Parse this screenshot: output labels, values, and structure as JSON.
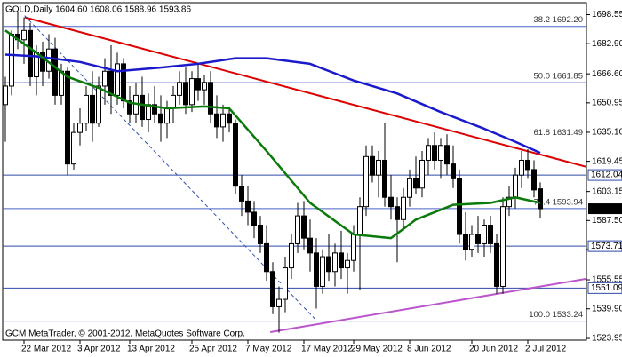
{
  "chart_data": {
    "type": "candlestick",
    "title": "GOLD,Daily  1604.60 1608.06 1588.96 1593.86",
    "footer": "GCM MetaTrader, © 2001-2012, MetaQuotes Software Corp.",
    "categories": [
      null,
      null,
      null,
      "22 Mar 2012",
      null,
      null,
      null,
      null,
      null,
      null,
      null,
      null,
      "3 Apr 2012",
      null,
      null,
      null,
      null,
      null,
      null,
      null,
      "13 Apr 2012",
      null,
      null,
      null,
      null,
      null,
      null,
      null,
      null,
      null,
      "25 Apr 2012",
      null,
      null,
      null,
      null,
      null,
      null,
      null,
      null,
      "7 May 2012",
      null,
      null,
      null,
      null,
      null,
      null,
      null,
      null,
      "17 May 2012",
      null,
      null,
      null,
      null,
      null,
      null,
      null,
      "29 May 2012",
      null,
      null,
      null,
      null,
      null,
      null,
      null,
      null,
      "8 Jun 2012",
      null,
      null,
      null,
      null,
      null,
      null,
      null,
      null,
      null,
      "20 Jun 2012",
      null,
      null,
      null,
      null,
      null,
      null,
      null,
      null,
      "2 Jul 2012",
      null,
      null
    ],
    "open": [
      1650,
      1660,
      1688,
      1685,
      1690,
      1665,
      1678,
      1668,
      1680,
      1655,
      1668,
      1618,
      1635,
      1640,
      1655,
      1640,
      1660,
      1668,
      1655,
      1672,
      1652,
      1645,
      1655,
      1642,
      1650,
      1645,
      1640,
      1648,
      1655,
      1662,
      1650,
      1664,
      1658,
      1662,
      1645,
      1638,
      1645,
      1640,
      1606,
      1598,
      1592,
      1585,
      1575,
      1560,
      1541,
      1545,
      1562,
      1575,
      1590,
      1578,
      1570,
      1552,
      1568,
      1560,
      1570,
      1562,
      1566,
      1580,
      1595,
      1622,
      1612,
      1620,
      1600,
      1595,
      1588,
      1600,
      1610,
      1605,
      1620,
      1628,
      1620,
      1628,
      1618,
      1610,
      1580,
      1572,
      1580,
      1575,
      1585,
      1575,
      1552,
      1595,
      1600,
      1612,
      1620,
      1615,
      1604.6
    ],
    "high": [
      1665,
      1690,
      1700,
      1697,
      1694,
      1682,
      1684,
      1688,
      1686,
      1672,
      1670,
      1640,
      1648,
      1660,
      1668,
      1665,
      1675,
      1682,
      1678,
      1675,
      1660,
      1662,
      1665,
      1656,
      1660,
      1655,
      1652,
      1660,
      1668,
      1670,
      1668,
      1672,
      1666,
      1668,
      1655,
      1650,
      1648,
      1642,
      1612,
      1606,
      1598,
      1590,
      1585,
      1565,
      1552,
      1568,
      1580,
      1597,
      1598,
      1588,
      1578,
      1572,
      1580,
      1575,
      1582,
      1570,
      1585,
      1600,
      1628,
      1628,
      1625,
      1640,
      1612,
      1600,
      1605,
      1615,
      1622,
      1625,
      1632,
      1635,
      1632,
      1634,
      1628,
      1615,
      1592,
      1585,
      1590,
      1588,
      1590,
      1580,
      1600,
      1606,
      1616,
      1625,
      1626,
      1620,
      1608.06
    ],
    "low": [
      1630,
      1655,
      1680,
      1672,
      1660,
      1655,
      1660,
      1664,
      1650,
      1650,
      1612,
      1615,
      1628,
      1636,
      1630,
      1638,
      1650,
      1645,
      1650,
      1648,
      1640,
      1640,
      1638,
      1635,
      1640,
      1630,
      1632,
      1640,
      1650,
      1645,
      1646,
      1652,
      1650,
      1640,
      1632,
      1630,
      1635,
      1602,
      1590,
      1585,
      1578,
      1570,
      1555,
      1537,
      1527,
      1538,
      1556,
      1570,
      1572,
      1560,
      1540,
      1548,
      1555,
      1552,
      1556,
      1548,
      1560,
      1550,
      1590,
      1608,
      1600,
      1595,
      1588,
      1565,
      1582,
      1595,
      1602,
      1600,
      1612,
      1615,
      1610,
      1612,
      1605,
      1575,
      1566,
      1568,
      1570,
      1568,
      1570,
      1548,
      1548,
      1590,
      1594,
      1605,
      1610,
      1600,
      1588.96
    ],
    "close": [
      1660,
      1688,
      1685,
      1690,
      1665,
      1678,
      1668,
      1680,
      1655,
      1668,
      1618,
      1635,
      1640,
      1655,
      1640,
      1660,
      1668,
      1655,
      1672,
      1652,
      1645,
      1655,
      1642,
      1650,
      1645,
      1640,
      1648,
      1655,
      1662,
      1650,
      1664,
      1658,
      1662,
      1645,
      1638,
      1645,
      1640,
      1606,
      1598,
      1592,
      1585,
      1575,
      1560,
      1541,
      1545,
      1562,
      1575,
      1590,
      1578,
      1570,
      1552,
      1568,
      1560,
      1570,
      1562,
      1566,
      1580,
      1595,
      1622,
      1612,
      1620,
      1600,
      1595,
      1588,
      1600,
      1610,
      1605,
      1620,
      1628,
      1620,
      1628,
      1618,
      1610,
      1580,
      1572,
      1580,
      1575,
      1585,
      1575,
      1552,
      1595,
      1600,
      1612,
      1620,
      1615,
      1604,
      1593.86
    ],
    "up_color": "#ffffff",
    "down_color": "#000000",
    "ylim": [
      1523,
      1705
    ],
    "yticks": [
      1698.55,
      {
        "value": 1682.9,
        "label": "1682.90"
      },
      {
        "value": 1666.6,
        "label": "1666.60"
      },
      1650.95,
      {
        "value": 1635.1,
        "label": "1635.10"
      },
      1619.45,
      1603.15,
      {
        "value": 1587.5,
        "label": "1587.50"
      },
      1571.85,
      1555.55,
      {
        "value": 1539.9,
        "label": "1539.90"
      },
      1523.95
    ],
    "fib_levels": [
      {
        "value": 1692.2,
        "label": "38.2 1692.20"
      },
      {
        "value": 1661.85,
        "label": "50.0 1661.85"
      },
      {
        "value": 1631.49,
        "label": "61.8 1631.49"
      },
      {
        "value": 1593.94,
        "label": "76.4 1593.94"
      },
      {
        "value": 1533.24,
        "label": "100.0 1533.24"
      }
    ],
    "fib_color": "#4a63c8",
    "price_lines": [
      1612.04,
      1573.71,
      1551.09
    ],
    "price_line_color": "#2d4aa8",
    "last_price": 1593.86,
    "trendlines": [
      {
        "color": "#dd0000",
        "dashed": false,
        "x": [
          3.1,
          93.4
        ],
        "values": [
          1697.1,
          1616.5
        ]
      },
      {
        "color": "#bb55cc",
        "dashed": false,
        "x": [
          42.6,
          93.4
        ],
        "values": [
          1527.3,
          1556.1
        ]
      },
      {
        "color": "#3050b0",
        "dashed": true,
        "x": [
          3.1,
          49.9
        ],
        "values": [
          1698,
          1534
        ]
      }
    ],
    "moving_averages": [
      {
        "color": "#1a1acc",
        "x": [
          0,
          5,
          12,
          18,
          25,
          31,
          37,
          42,
          49,
          56,
          63,
          70,
          77,
          82,
          86
        ],
        "values": [
          1677,
          1676,
          1673,
          1668,
          1670,
          1672,
          1675,
          1675,
          1672,
          1663,
          1656,
          1646,
          1637,
          1630,
          1624
        ]
      },
      {
        "color": "#0a7a0a",
        "x": [
          0,
          5,
          10,
          15,
          20,
          26,
          32,
          36,
          42,
          49,
          56,
          62,
          66,
          72,
          78,
          82,
          86
        ],
        "values": [
          1690,
          1678,
          1665,
          1659,
          1651,
          1648,
          1649,
          1648,
          1625,
          1597,
          1580,
          1578,
          1588,
          1596,
          1597,
          1600,
          1597
        ]
      }
    ]
  }
}
